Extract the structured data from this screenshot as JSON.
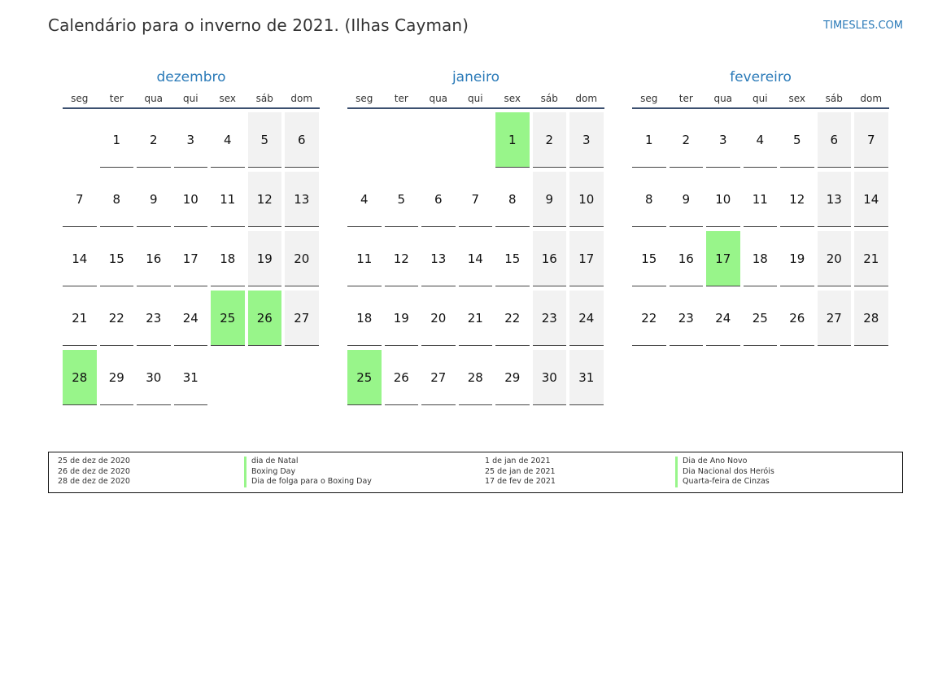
{
  "header": {
    "title": "Calendário para o inverno de 2021. (Ilhas Cayman)",
    "brand": "TIMESLES.COM"
  },
  "weekday_labels": [
    "seg",
    "ter",
    "qua",
    "qui",
    "sex",
    "sáb",
    "dom"
  ],
  "months": [
    {
      "name": "dezembro",
      "start_weekday": 1,
      "days_in_month": 31,
      "holidays": [
        25,
        26,
        28
      ]
    },
    {
      "name": "janeiro",
      "start_weekday": 4,
      "days_in_month": 31,
      "holidays": [
        1,
        25
      ]
    },
    {
      "name": "fevereiro",
      "start_weekday": 0,
      "days_in_month": 28,
      "holidays": [
        17
      ]
    }
  ],
  "legend": {
    "left": [
      {
        "date": "25 de dez de 2020",
        "name": "dia de Natal"
      },
      {
        "date": "26 de dez de 2020",
        "name": "Boxing Day"
      },
      {
        "date": "28 de dez de 2020",
        "name": "Dia de folga para o Boxing Day"
      }
    ],
    "right": [
      {
        "date": "1 de jan de 2021",
        "name": "Dia de Ano Novo"
      },
      {
        "date": "25 de jan de 2021",
        "name": "Dia Nacional dos Heróis"
      },
      {
        "date": "17 de fev de 2021",
        "name": "Quarta-feira de Cinzas"
      }
    ]
  },
  "colors": {
    "holiday": "#98f58a",
    "weekend": "#f2f2f2",
    "month_title": "#2a7ab8"
  }
}
